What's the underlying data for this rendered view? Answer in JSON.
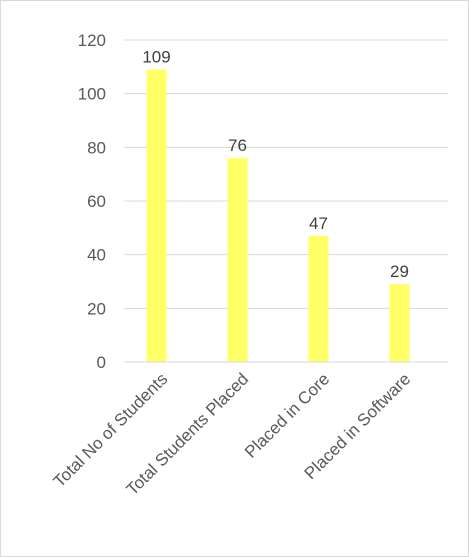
{
  "chart_data": {
    "type": "bar",
    "categories": [
      "Total No of Students",
      "Total Students Placed",
      "Placed in Core",
      "Placed in Software"
    ],
    "values": [
      109,
      76,
      47,
      29
    ],
    "data_labels": [
      "109",
      "76",
      "47",
      "29"
    ],
    "title": "",
    "xlabel": "",
    "ylabel": "",
    "ylim": [
      0,
      120
    ],
    "yticks": [
      0,
      20,
      40,
      60,
      80,
      100,
      120
    ],
    "ytick_labels": [
      "0",
      "20",
      "40",
      "60",
      "80",
      "100",
      "120"
    ],
    "grid": true,
    "legend": "none",
    "bar_color": "#FFFF66",
    "grid_color": "#d9d9d9",
    "axis_color": "#d9d9d9"
  }
}
